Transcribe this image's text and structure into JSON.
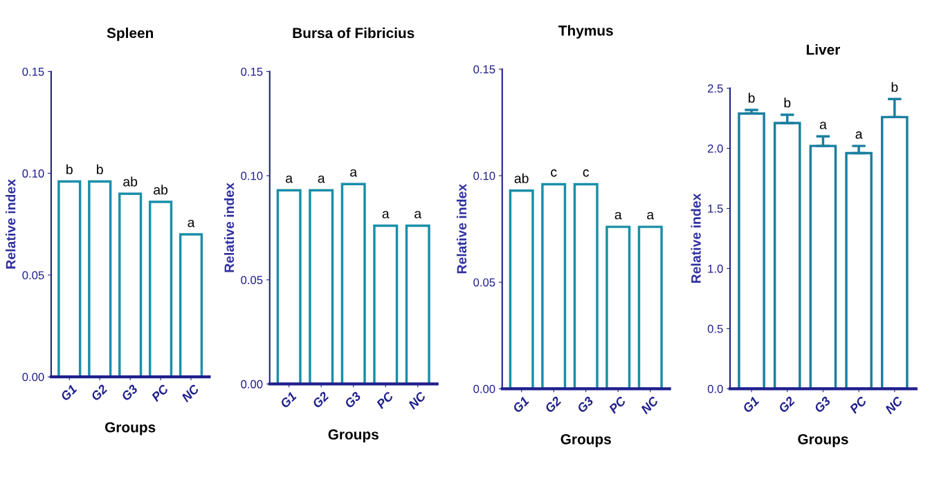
{
  "chart_data": [
    {
      "type": "bar",
      "title": "Spleen",
      "xlabel": "Groups",
      "ylabel": "Relative index",
      "categories": [
        "G1",
        "G2",
        "G3",
        "PC",
        "NC"
      ],
      "values": [
        0.096,
        0.096,
        0.09,
        0.086,
        0.07
      ],
      "color": "#1a8fa8",
      "ylim": [
        0,
        0.15
      ],
      "yticks": [
        {
          "value": 0,
          "label": "0.00"
        },
        {
          "value": 0.05,
          "label": "0.05"
        },
        {
          "value": 0.1,
          "label": "0.10"
        },
        {
          "value": 0.15,
          "label": "0.15"
        }
      ],
      "annotations": [
        {
          "text": "b",
          "x": "G1",
          "y": 0.096
        },
        {
          "text": "b",
          "x": "G2",
          "y": 0.096
        },
        {
          "text": "ab",
          "x": "G3",
          "y": 0.09
        },
        {
          "text": "ab",
          "x": "PC",
          "y": 0.086
        },
        {
          "text": "a",
          "x": "NC",
          "y": 0.07
        }
      ]
    },
    {
      "type": "bar",
      "title": "Bursa of Fibricius",
      "xlabel": "Groups",
      "ylabel": "Relative index",
      "categories": [
        "G1",
        "G2",
        "G3",
        "PC",
        "NC"
      ],
      "values": [
        0.093,
        0.093,
        0.096,
        0.076,
        0.076
      ],
      "color": "#1a8fa8",
      "ylim": [
        0,
        0.15
      ],
      "yticks": [
        {
          "value": 0,
          "label": "0.00"
        },
        {
          "value": 0.05,
          "label": "0.05"
        },
        {
          "value": 0.1,
          "label": "0.10"
        },
        {
          "value": 0.15,
          "label": "0.15"
        }
      ],
      "annotations": [
        {
          "text": "a",
          "x": "G1",
          "y": 0.093
        },
        {
          "text": "a",
          "x": "G2",
          "y": 0.093
        },
        {
          "text": "a",
          "x": "G3",
          "y": 0.096
        },
        {
          "text": "a",
          "x": "PC",
          "y": 0.076
        },
        {
          "text": "a",
          "x": "NC",
          "y": 0.076
        }
      ]
    },
    {
      "type": "bar",
      "title": "Thymus",
      "xlabel": "Groups",
      "ylabel": "Relative index",
      "categories": [
        "G1",
        "G2",
        "G3",
        "PC",
        "NC"
      ],
      "values": [
        0.093,
        0.096,
        0.096,
        0.076,
        0.076
      ],
      "color": "#1a8fa8",
      "ylim": [
        0,
        0.15
      ],
      "yticks": [
        {
          "value": 0,
          "label": "0.00"
        },
        {
          "value": 0.05,
          "label": "0.05"
        },
        {
          "value": 0.1,
          "label": "0.10"
        },
        {
          "value": 0.15,
          "label": "0.15"
        }
      ],
      "annotations": [
        {
          "text": "ab",
          "x": "G1",
          "y": 0.093
        },
        {
          "text": "c",
          "x": "G2",
          "y": 0.096
        },
        {
          "text": "c",
          "x": "G3",
          "y": 0.096
        },
        {
          "text": "a",
          "x": "PC",
          "y": 0.076
        },
        {
          "text": "a",
          "x": "NC",
          "y": 0.076
        }
      ]
    },
    {
      "type": "bar",
      "title": "Liver",
      "xlabel": "Groups",
      "ylabel": "Relative index",
      "categories": [
        "G1",
        "G2",
        "G3",
        "PC",
        "NC"
      ],
      "values": [
        2.29,
        2.21,
        2.02,
        1.96,
        2.26
      ],
      "errors": [
        0.03,
        0.07,
        0.08,
        0.06,
        0.15
      ],
      "color": "#1a7fa0",
      "ylim": [
        0,
        2.5
      ],
      "yticks": [
        {
          "value": 0,
          "label": "0.0"
        },
        {
          "value": 0.5,
          "label": "0.5"
        },
        {
          "value": 1,
          "label": "1.0"
        },
        {
          "value": 1.5,
          "label": "1.5"
        },
        {
          "value": 2,
          "label": "2.0"
        },
        {
          "value": 2.5,
          "label": "2.5"
        }
      ],
      "annotations": [
        {
          "text": "b",
          "x": "G1",
          "y": 2.32
        },
        {
          "text": "b",
          "x": "G2",
          "y": 2.28
        },
        {
          "text": "a",
          "x": "G3",
          "y": 2.1
        },
        {
          "text": "a",
          "x": "PC",
          "y": 2.02
        },
        {
          "text": "b",
          "x": "NC",
          "y": 2.41
        }
      ]
    }
  ]
}
